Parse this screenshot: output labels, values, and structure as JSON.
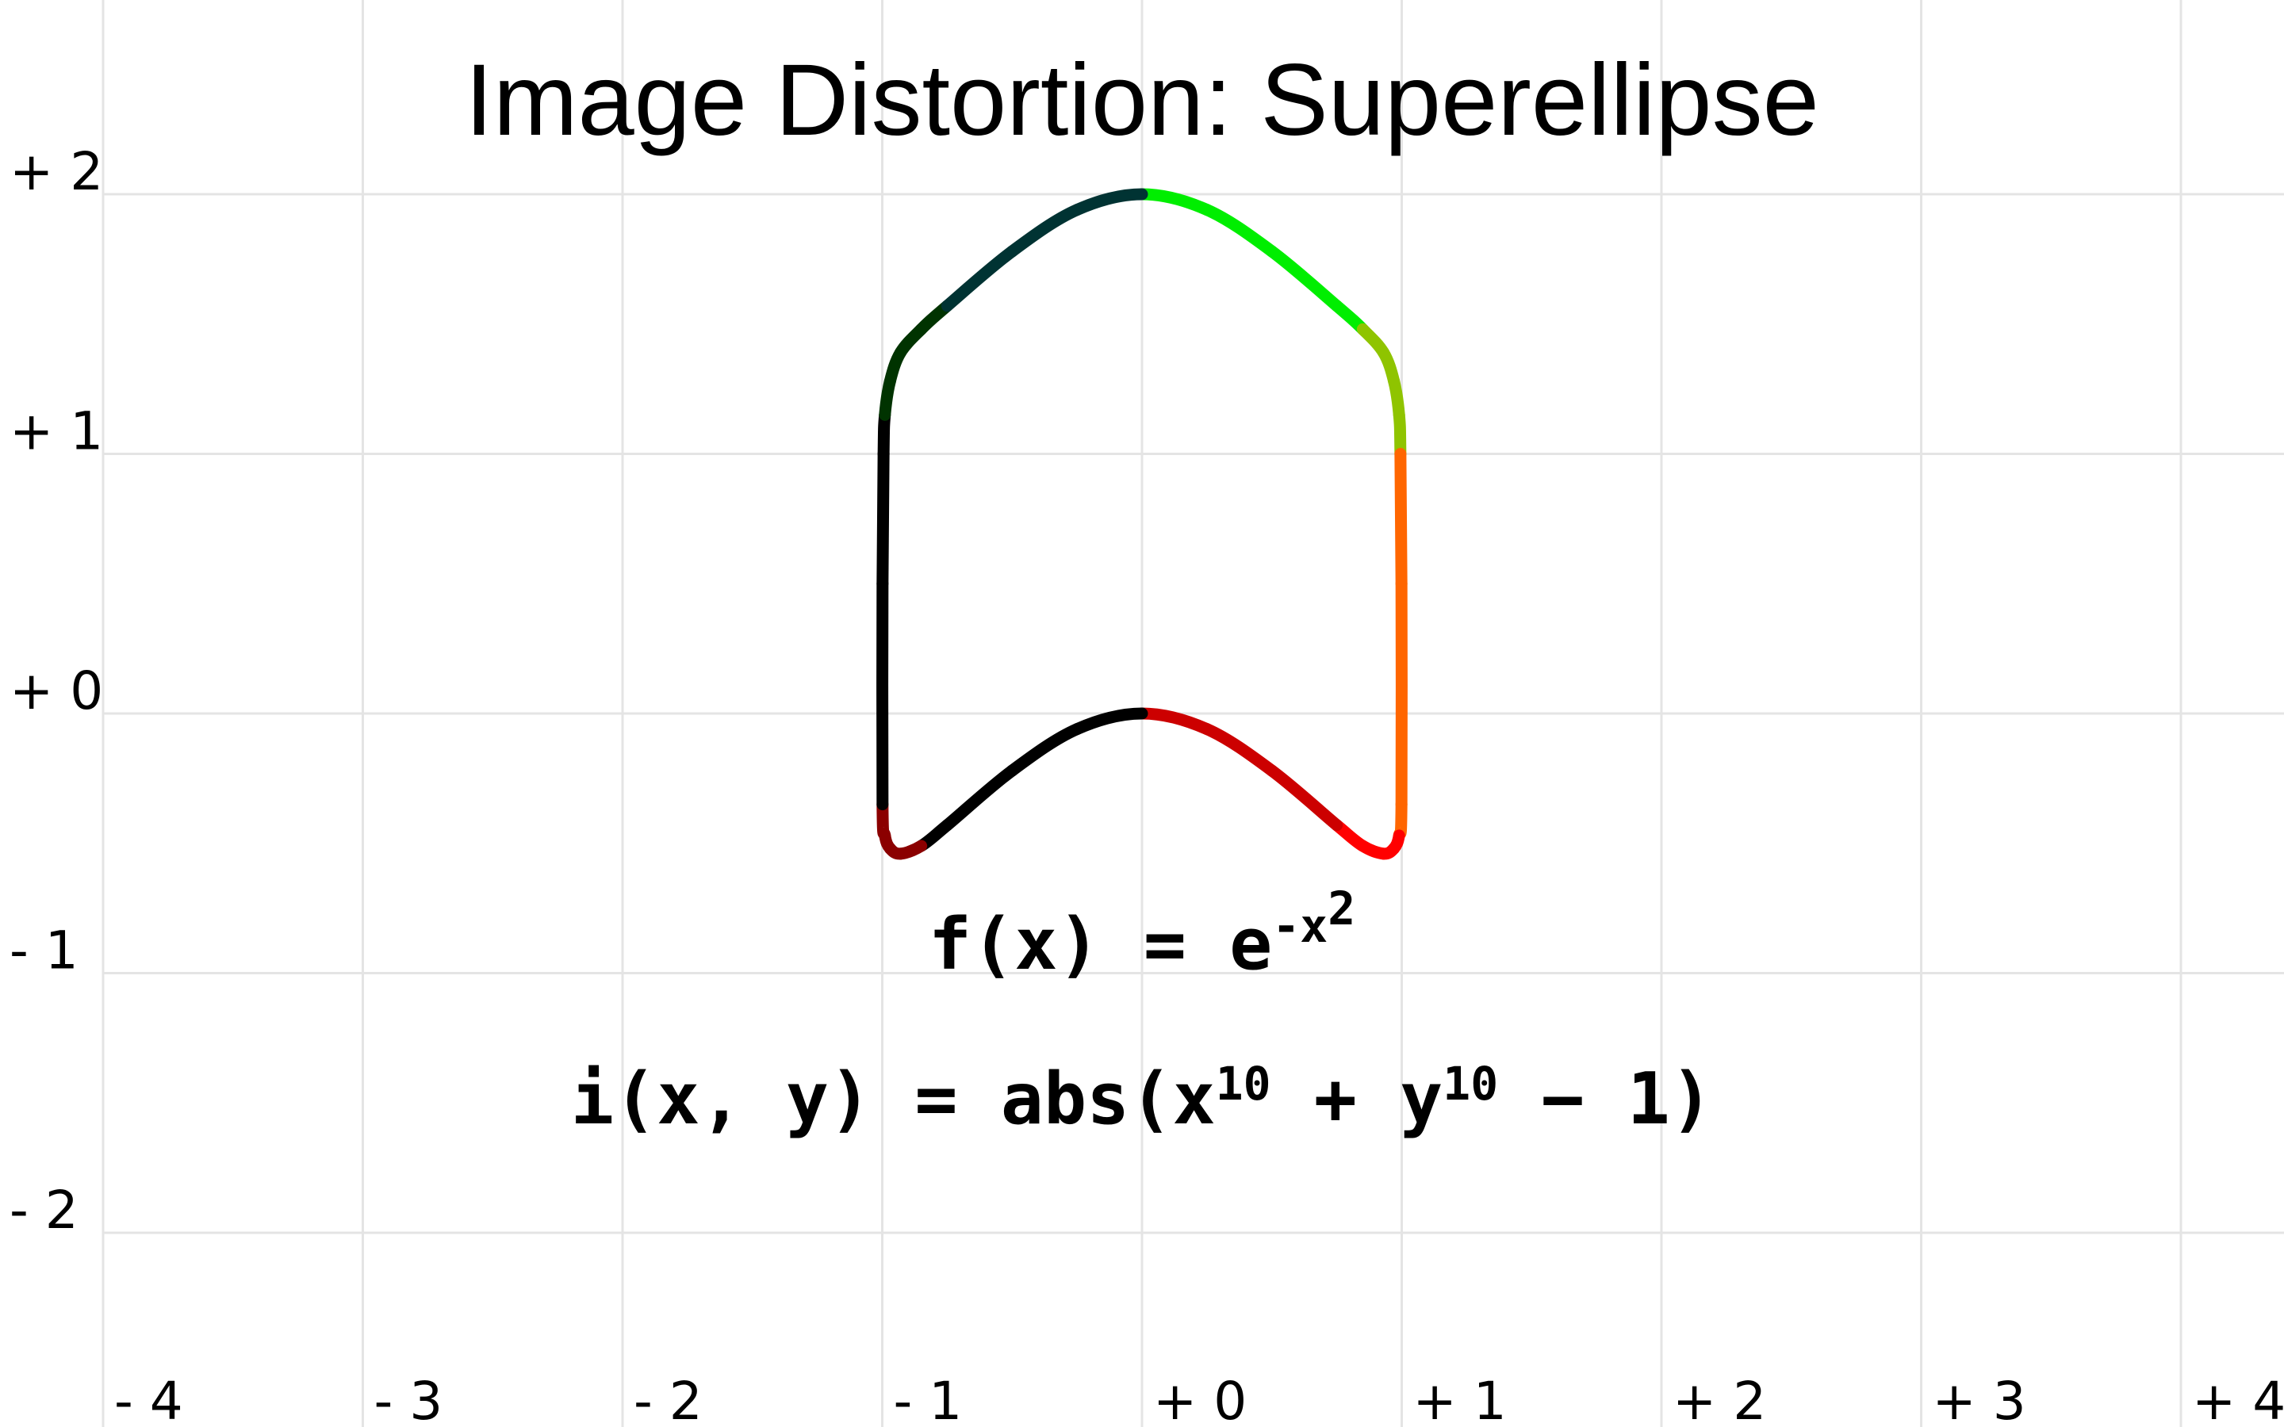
{
  "chart_data": {
    "type": "line",
    "title": "Image Distortion: Superellipse",
    "x_ticks": [
      "- 4",
      "- 3",
      "- 2",
      "- 1",
      "+ 0",
      "+ 1",
      "+ 2",
      "+ 3",
      "+ 4"
    ],
    "y_ticks": [
      "+ 2",
      "+ 1",
      "+ 0",
      "- 1",
      "- 2"
    ],
    "xlim": [
      -4,
      4.2
    ],
    "ylim": [
      -2.7,
      2.75
    ],
    "grid": true,
    "formulas": {
      "f_prefix": "f(x) = e",
      "f_exponent": "-x",
      "f_exponent_power": "2",
      "i_part1": "i(x, y) = abs(x",
      "i_power1": "10",
      "i_part2": " + y",
      "i_power2": "10",
      "i_part3": " − 1)"
    },
    "series": [
      {
        "colors": [
          "#00ee00",
          "#8fc400",
          "#ff6600",
          "#ff0000",
          "#cc0000",
          "#000000",
          "#8b0000",
          "#000000",
          "#003300",
          "#003333"
        ],
        "x": [
          0,
          0.25,
          0.5,
          0.75,
          0.85,
          0.93,
          0.97,
          0.99,
          0.995,
          0.999,
          0.999,
          0.99,
          0.97,
          0.93,
          0.85,
          0.75,
          0.5,
          0.25,
          0,
          -0.25,
          -0.5,
          -0.75,
          -0.85,
          -0.93,
          -0.97,
          -0.99,
          -0.999,
          -0.999,
          -0.995,
          -0.99,
          -0.97,
          -0.93,
          -0.85,
          -0.75,
          -0.5,
          -0.25,
          0
        ],
        "y": [
          2,
          1.94,
          1.78,
          1.57,
          1.48,
          1.39,
          1.28,
          1.15,
          1.0,
          0.5,
          -0.35,
          -0.47,
          -0.52,
          -0.54,
          -0.51,
          -0.43,
          -0.22,
          -0.06,
          0,
          -0.06,
          -0.22,
          -0.43,
          -0.51,
          -0.54,
          -0.52,
          -0.47,
          -0.35,
          0.5,
          1.0,
          1.15,
          1.28,
          1.39,
          1.48,
          1.57,
          1.78,
          1.94,
          2
        ]
      }
    ]
  }
}
